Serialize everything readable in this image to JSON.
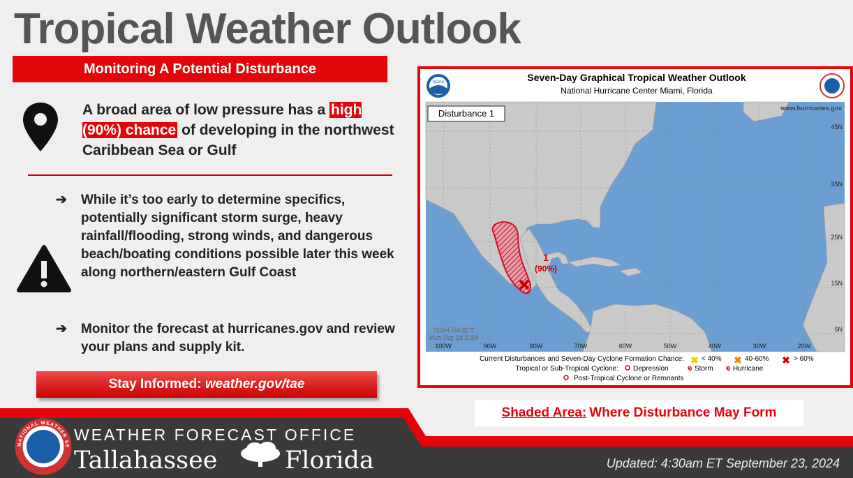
{
  "header": {
    "title": "Tropical Weather Outlook",
    "banner": "Monitoring A Potential Disturbance"
  },
  "summary": {
    "before": "A broad area of low pressure has a",
    "highlight": "high (90%) chance",
    "after": "of developing in the northwest Caribbean Sea or Gulf"
  },
  "bullets": [
    "While it’s too early to determine specifics, potentially significant storm surge, heavy rainfall/flooding, strong winds, and dangerous beach/boating conditions possible later this week along northern/eastern Gulf Coast",
    "Monitor the forecast at hurricanes.gov and review your plans and supply kit."
  ],
  "cta": {
    "label": "Stay Informed:",
    "link": "weather.gov/tae"
  },
  "map": {
    "title": "Seven-Day Graphical Tropical Weather Outlook",
    "subtitle": "National Hurricane Center  Miami, Florida",
    "site": "www.hurricanes.gov",
    "noaa": "NOAA",
    "disturbance": "Disturbance 1",
    "marker": "1",
    "chance": "(90%)",
    "time": "01:44 AM EDT",
    "date": "Mon Sep 23 2024",
    "lon": [
      "100W",
      "90W",
      "80W",
      "70W",
      "60W",
      "50W",
      "40W",
      "30W",
      "20W"
    ],
    "lat": [
      "45N",
      "35N",
      "25N",
      "15N",
      "5N"
    ],
    "legend": {
      "line1": "Current Disturbances and Seven-Day Cyclone Formation Chance:",
      "low": "< 40%",
      "mid": "40-60%",
      "high": "> 60%",
      "line2": "Tropical or Sub-Tropical Cyclone:",
      "depression": "Depression",
      "storm": "Storm",
      "hurricane": "Hurricane",
      "post": "Post-Tropical Cyclone or Remnants"
    }
  },
  "caption": {
    "label": "Shaded Area:",
    "text": "Where Disturbance May Form"
  },
  "footer": {
    "office": "WEATHER FORECAST OFFICE",
    "city": "Tallahassee",
    "state": "Florida",
    "agency": "NATIONAL WEATHER SERVICE",
    "updated": "Updated: 4:30am ET September 23, 2024"
  }
}
